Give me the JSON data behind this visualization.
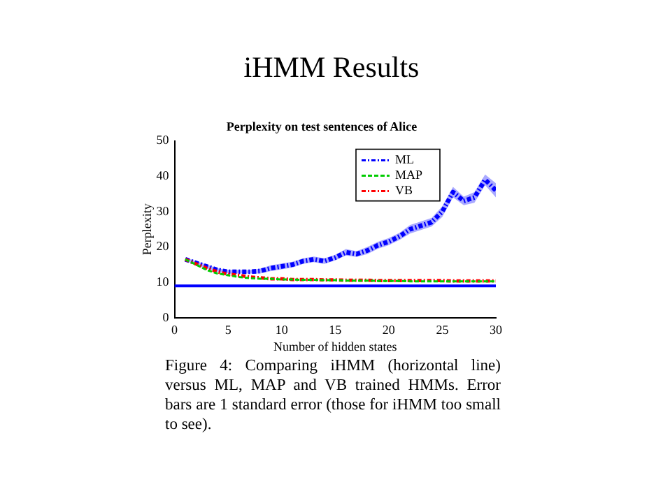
{
  "chart_data": {
    "type": "line",
    "title": "iHMM Results",
    "subtitle": "Perplexity on test sentences of Alice",
    "xlabel": "Number of hidden states",
    "ylabel": "Perplexity",
    "x": [
      1,
      2,
      3,
      4,
      5,
      6,
      7,
      8,
      9,
      10,
      11,
      12,
      13,
      14,
      15,
      16,
      17,
      18,
      19,
      20,
      21,
      22,
      23,
      24,
      25,
      26,
      27,
      28,
      29,
      30
    ],
    "series": [
      {
        "name": "ML",
        "color": "#0000ff",
        "line_style": "dashdot",
        "values": [
          16.5,
          15.5,
          14.5,
          13.5,
          13,
          13,
          13,
          13.2,
          14,
          14.5,
          15,
          16,
          16.5,
          16,
          17,
          18.5,
          18,
          19,
          20.5,
          21.5,
          23,
          25,
          26,
          27,
          30,
          35.5,
          33,
          34,
          39,
          36
        ],
        "lower": [
          16,
          15,
          14,
          13,
          12.5,
          12.5,
          12.5,
          12.5,
          13.2,
          13.7,
          14.2,
          15.2,
          15.7,
          15.2,
          16.2,
          17.6,
          17.2,
          18,
          19.5,
          20.5,
          22,
          23.8,
          24.8,
          25.8,
          28.5,
          34,
          31.8,
          32.5,
          37.5,
          34
        ],
        "upper": [
          17,
          16,
          15,
          14,
          13.5,
          13.5,
          13.5,
          13.9,
          14.8,
          15.3,
          15.8,
          16.8,
          17.3,
          16.8,
          17.8,
          19.4,
          18.8,
          20,
          21.5,
          22.5,
          24,
          26.2,
          27.2,
          28.2,
          31.5,
          37,
          34.2,
          35.5,
          40.5,
          38
        ]
      },
      {
        "name": "MAP",
        "color": "#00cc00",
        "line_style": "dashed",
        "values": [
          16.5,
          15,
          13.5,
          12.5,
          12,
          11.5,
          11.2,
          11,
          11,
          10.8,
          10.8,
          10.7,
          10.7,
          10.6,
          10.6,
          10.5,
          10.5,
          10.5,
          10.4,
          10.4,
          10.4,
          10.3,
          10.3,
          10.3,
          10.3,
          10.3,
          10.3,
          10.3,
          10.3,
          10.3
        ]
      },
      {
        "name": "VB",
        "color": "#ff0000",
        "line_style": "dashdot",
        "values": [
          16.5,
          15.2,
          14,
          13,
          12.3,
          12,
          11.5,
          11.3,
          11,
          11,
          10.8,
          10.8,
          10.8,
          10.7,
          10.7,
          10.6,
          10.6,
          10.6,
          10.5,
          10.5,
          10.5,
          10.5,
          10.5,
          10.5,
          10.5,
          10.4,
          10.4,
          10.4,
          10.4,
          10.4
        ]
      }
    ],
    "ref_lines": [
      {
        "axis": "y",
        "value": 9,
        "color": "#0000ff",
        "line_style": "solid"
      }
    ],
    "xlim": [
      0,
      30
    ],
    "xticks": [
      0,
      5,
      10,
      15,
      20,
      25,
      30
    ],
    "ylim": [
      0,
      50
    ],
    "yticks": [
      0,
      10,
      20,
      30,
      40,
      50
    ],
    "grid": false,
    "legend": "top right",
    "marker": "none",
    "annotations": [
      "Figure 4:  Comparing iHMM (horizontal line) versus ML, MAP and VB trained HMMs.  Error bars are 1 standard error (those for iHMM too small to see)."
    ]
  }
}
